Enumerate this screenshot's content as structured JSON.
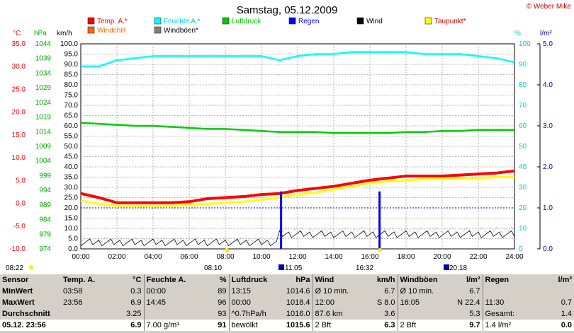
{
  "title": "Samstag, 05.12.2009",
  "copyright": "© Weber Mike",
  "colors": {
    "temp": "#ff0000",
    "feuchte": "#00ffff",
    "luftdruck": "#00cc00",
    "regen": "#0000ff",
    "wind": "#000000",
    "taupunkt": "#ffff00",
    "windchill": "#ff6600",
    "windboeen": "#808080",
    "axis_temp": "#ff0000",
    "axis_hpa": "#00aa00",
    "axis_pct": "#00cccc",
    "axis_rain": "#0000cc"
  },
  "axis_units": {
    "temp": "°C",
    "hpa": "hPa",
    "kmh": "km/h",
    "pct": "%",
    "rain": "l/m²"
  },
  "legend": [
    {
      "label": "Temp. A.*",
      "color": "#ff0000"
    },
    {
      "label": "Feuchte A.*",
      "color": "#00ffff"
    },
    {
      "label": "Luftdruck",
      "color": "#00cc00"
    },
    {
      "label": "Regen",
      "color": "#0000ff"
    },
    {
      "label": "Wind",
      "color": "#000000"
    },
    {
      "label": "Taupunkt*",
      "color": "#ffff00"
    },
    {
      "label": "Windchill",
      "color": "#ff6600"
    },
    {
      "label": "Windböen*",
      "color": "#808080"
    }
  ],
  "markers": {
    "sunrise": "08:10",
    "rain_start": "11:05",
    "rain_mid": "16:32",
    "sunset": "20:18",
    "left": "08:22"
  },
  "chart_data": {
    "type": "line",
    "xlabel": "",
    "x_ticks": [
      "00:00",
      "02:00",
      "04:00",
      "06:00",
      "08:00",
      "10:00",
      "12:00",
      "14:00",
      "16:00",
      "18:00",
      "20:00",
      "22:00",
      "24:00"
    ],
    "axes": {
      "temp": {
        "range": [
          -10,
          35
        ],
        "ticks": [
          "35.0",
          "30.0",
          "25.0",
          "20.0",
          "15.0",
          "10.0",
          "5.0",
          "0.0",
          "-5.0",
          "-10.0"
        ]
      },
      "hpa": {
        "range": [
          974,
          1044
        ],
        "ticks": [
          "1044",
          "1039",
          "1034",
          "1029",
          "1024",
          "1019",
          "1014",
          "1009",
          "1004",
          "999",
          "994",
          "989",
          "984",
          "979",
          "974"
        ]
      },
      "kmh": {
        "range": [
          0,
          100
        ],
        "ticks": [
          "100.0",
          "95.0",
          "90.0",
          "85.0",
          "80.0",
          "75.0",
          "70.0",
          "65.0",
          "60.0",
          "55.0",
          "50.0",
          "45.0",
          "40.0",
          "35.0",
          "30.0",
          "25.0",
          "20.0",
          "15.0",
          "10.0",
          "5.0",
          "0.0"
        ]
      },
      "pct": {
        "range": [
          0,
          100
        ],
        "ticks": [
          "100",
          "90",
          "80",
          "70",
          "60",
          "50",
          "40",
          "30",
          "20",
          "10",
          "0"
        ]
      },
      "rain": {
        "range": [
          0,
          5
        ],
        "ticks": [
          "5.0",
          "4.0",
          "3.0",
          "2.0",
          "1.0",
          "0.0"
        ]
      }
    },
    "hours": [
      0,
      1,
      2,
      3,
      4,
      5,
      6,
      7,
      8,
      9,
      10,
      11,
      12,
      13,
      14,
      15,
      16,
      17,
      18,
      19,
      20,
      21,
      22,
      23,
      24
    ],
    "series": [
      {
        "name": "Temp. A.*",
        "axis": "kmh",
        "values": [
          27,
          25,
          22.5,
          22.5,
          22.5,
          22.5,
          23,
          24.5,
          25,
          25.5,
          26.5,
          27,
          28.5,
          29.5,
          30.5,
          32,
          33.5,
          34.5,
          35.5,
          35.5,
          35.5,
          36,
          36.5,
          37,
          38
        ]
      },
      {
        "name": "Feuchte A.*",
        "axis": "pct",
        "values": [
          89,
          89,
          92,
          93,
          94,
          94,
          94,
          94,
          94,
          94,
          94,
          92,
          94,
          95,
          95,
          96,
          96,
          96,
          96,
          95,
          95,
          95,
          94,
          93,
          91
        ]
      },
      {
        "name": "Luftdruck",
        "axis": "kmh",
        "values": [
          61.5,
          61,
          60.5,
          60,
          60,
          59.5,
          59,
          58.5,
          58.5,
          58,
          57.5,
          57,
          57,
          57,
          56.5,
          56.5,
          56.5,
          56.5,
          57,
          57,
          57.5,
          57.5,
          58,
          58,
          58
        ]
      },
      {
        "name": "Taupunkt*",
        "axis": "kmh",
        "values": [
          23.5,
          22,
          21,
          21,
          21,
          21,
          21.5,
          22,
          22.5,
          23,
          24,
          25,
          26.5,
          27.5,
          29,
          30.5,
          32,
          33,
          33.5,
          34,
          34,
          34.5,
          34.5,
          35,
          35
        ]
      }
    ],
    "rain_bars": [
      {
        "time": "11:05",
        "value": 1.4
      },
      {
        "time": "16:32",
        "value": 1.4
      }
    ],
    "rain_line": 1.0
  },
  "stats": {
    "headers": [
      "Sensor",
      "Temp. A.",
      "°C",
      "Feuchte A.",
      "%",
      "Luftdruck",
      "hPa",
      "Wind",
      "km/h",
      "Windböen",
      "l/m²",
      "Regen",
      "l/m²"
    ],
    "rows": [
      {
        "label": "MinWert",
        "cells": [
          "03:58",
          "0.3",
          "00:00",
          "89",
          "13:15",
          "1014.6",
          "Ø 10 min.",
          "6.7",
          "Ø 10 min.",
          "6.7",
          "",
          ""
        ]
      },
      {
        "label": "MaxWert",
        "cells": [
          "23:56",
          "6.9",
          "14:45",
          "96",
          "00:00",
          "1018.4",
          "12:00",
          "S 8.0",
          "16:05",
          "N 22.4",
          "11:30",
          "0.7"
        ]
      },
      {
        "label": "Durchschnitt",
        "cells": [
          "",
          "3.25",
          "",
          "93",
          "^0.7hPa/h",
          "1016.0",
          "87.6 km",
          "3.6",
          "",
          "5.3",
          "Gesamt:",
          "1.4"
        ]
      },
      {
        "label": "05.12. 23:56",
        "cells": [
          "",
          "6.9",
          "7.00 g/m³",
          "91",
          "bewölkt",
          "1015.6",
          "2 Bft",
          "6.3",
          "2 Bft",
          "9.7",
          "1.4 l/m²",
          "0.0"
        ]
      }
    ]
  }
}
